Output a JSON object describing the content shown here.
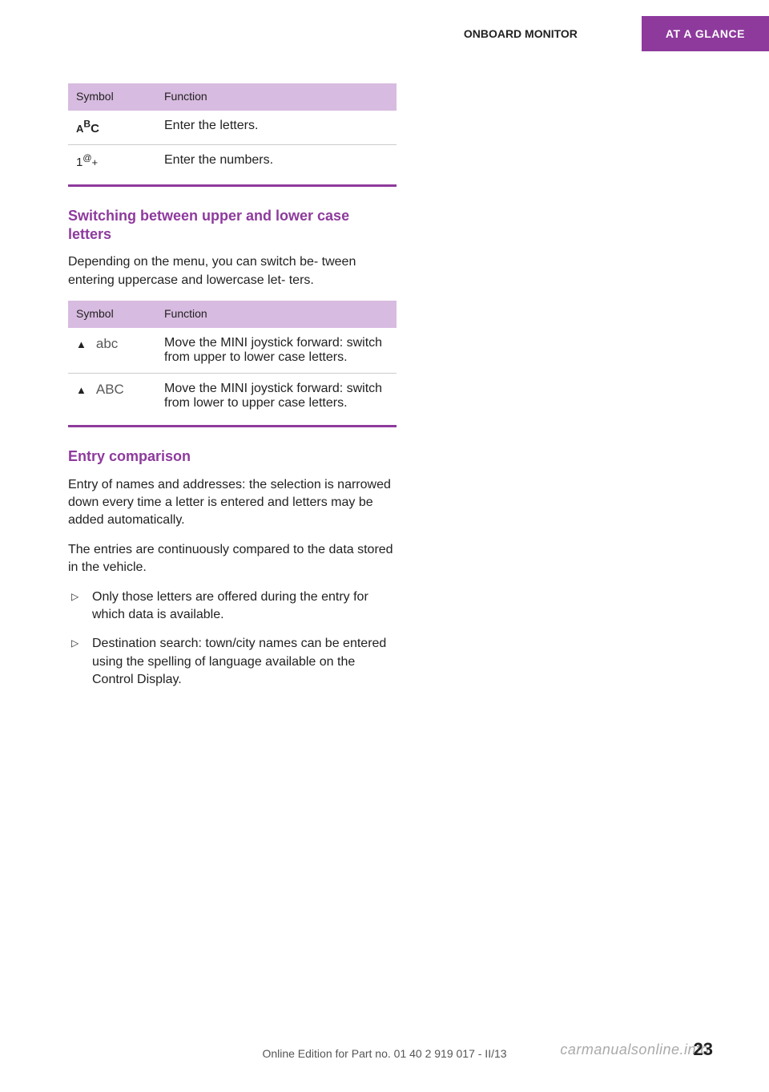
{
  "header": {
    "breadcrumb": "ONBOARD MONITOR",
    "section_tab": "AT A GLANCE"
  },
  "table1": {
    "header_symbol": "Symbol",
    "header_function": "Function",
    "rows": [
      {
        "symbol_label": "ABC",
        "function": "Enter the letters."
      },
      {
        "symbol_label": "1@+",
        "function": "Enter the numbers."
      }
    ]
  },
  "section1": {
    "heading": "Switching between upper and lower case letters",
    "paragraph": "Depending on the menu, you can switch be‐ tween entering uppercase and lowercase let‐ ters."
  },
  "table2": {
    "header_symbol": "Symbol",
    "header_function": "Function",
    "rows": [
      {
        "case_label": "abc",
        "function": "Move the MINI joystick forward: switch from upper to lower case letters."
      },
      {
        "case_label": "ABC",
        "function": "Move the MINI joystick forward: switch from lower to upper case letters."
      }
    ]
  },
  "section2": {
    "heading": "Entry comparison",
    "paragraph1": "Entry of names and addresses: the selection is narrowed down every time a letter is entered and letters may be added automatically.",
    "paragraph2": "The entries are continuously compared to the data stored in the vehicle.",
    "bullets": [
      "Only those letters are offered during the entry for which data is available.",
      "Destination search: town/city names can be entered using the spelling of language available on the Control Display."
    ]
  },
  "footer": {
    "page_number": "23",
    "edition_line": "Online Edition for Part no. 01 40 2 919 017 - II/13",
    "watermark": "carmanualsonline.info"
  },
  "colors": {
    "brand": "#8e3a9d",
    "header_bg": "#d8bbe0",
    "text": "#222222",
    "grey_label": "#595959"
  }
}
